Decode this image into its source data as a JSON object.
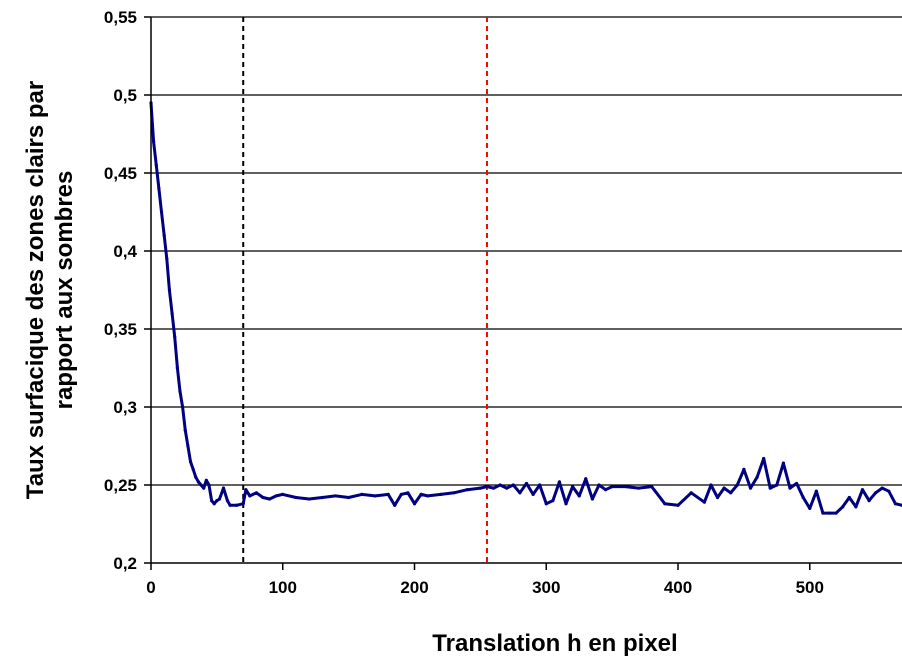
{
  "chart_data": {
    "type": "line",
    "title": "",
    "xlabel": "Translation h en pixel",
    "ylabel_lines": [
      "Taux surfacique des zones clairs par",
      "rapport aux sombres"
    ],
    "xlim": [
      0,
      570
    ],
    "ylim": [
      0.2,
      0.55
    ],
    "x_ticks": [
      0,
      100,
      200,
      300,
      400,
      500
    ],
    "x_tick_labels": [
      "0",
      "100",
      "200",
      "300",
      "400",
      "500"
    ],
    "y_ticks": [
      0.2,
      0.25,
      0.3,
      0.35,
      0.4,
      0.45,
      0.5,
      0.55
    ],
    "y_tick_labels": [
      "0,2",
      "0,25",
      "0,3",
      "0,35",
      "0,4",
      "0,45",
      "0,5",
      "0,55"
    ],
    "grid": "horizontal",
    "legend": "none",
    "vertical_lines": [
      {
        "x": 70,
        "color": "#000000",
        "style": "dashed"
      },
      {
        "x": 255,
        "color": "#ff0000",
        "style": "dashed"
      }
    ],
    "series": [
      {
        "color": "#000080",
        "x": [
          0,
          2,
          4,
          6,
          8,
          10,
          12,
          14,
          16,
          18,
          20,
          22,
          24,
          26,
          28,
          30,
          32,
          34,
          36,
          38,
          40,
          42,
          44,
          46,
          48,
          50,
          52,
          55,
          58,
          60,
          65,
          70,
          72,
          75,
          80,
          85,
          90,
          95,
          100,
          110,
          120,
          130,
          140,
          150,
          160,
          170,
          180,
          185,
          190,
          195,
          200,
          205,
          210,
          220,
          230,
          240,
          250,
          255,
          260,
          265,
          270,
          275,
          280,
          285,
          290,
          295,
          300,
          305,
          310,
          315,
          320,
          325,
          330,
          335,
          340,
          345,
          350,
          360,
          370,
          380,
          390,
          400,
          410,
          420,
          425,
          430,
          435,
          440,
          445,
          450,
          455,
          460,
          465,
          470,
          475,
          480,
          485,
          490,
          495,
          500,
          505,
          510,
          515,
          520,
          525,
          530,
          535,
          540,
          545,
          550,
          555,
          560,
          565,
          570
        ],
        "y": [
          0.495,
          0.47,
          0.455,
          0.44,
          0.425,
          0.41,
          0.395,
          0.375,
          0.36,
          0.345,
          0.325,
          0.31,
          0.3,
          0.285,
          0.275,
          0.265,
          0.26,
          0.255,
          0.252,
          0.25,
          0.248,
          0.253,
          0.25,
          0.24,
          0.238,
          0.24,
          0.241,
          0.248,
          0.24,
          0.237,
          0.237,
          0.238,
          0.247,
          0.243,
          0.245,
          0.242,
          0.241,
          0.243,
          0.244,
          0.242,
          0.241,
          0.242,
          0.243,
          0.242,
          0.244,
          0.243,
          0.244,
          0.237,
          0.244,
          0.245,
          0.238,
          0.244,
          0.243,
          0.244,
          0.245,
          0.247,
          0.248,
          0.249,
          0.248,
          0.25,
          0.248,
          0.25,
          0.245,
          0.251,
          0.244,
          0.25,
          0.238,
          0.24,
          0.252,
          0.238,
          0.249,
          0.243,
          0.254,
          0.241,
          0.25,
          0.247,
          0.249,
          0.249,
          0.248,
          0.249,
          0.238,
          0.237,
          0.245,
          0.239,
          0.25,
          0.242,
          0.248,
          0.245,
          0.25,
          0.26,
          0.248,
          0.255,
          0.267,
          0.248,
          0.25,
          0.264,
          0.248,
          0.251,
          0.242,
          0.235,
          0.246,
          0.232,
          0.232,
          0.232,
          0.236,
          0.242,
          0.236,
          0.247,
          0.24,
          0.245,
          0.248,
          0.246,
          0.238,
          0.237
        ]
      }
    ]
  }
}
